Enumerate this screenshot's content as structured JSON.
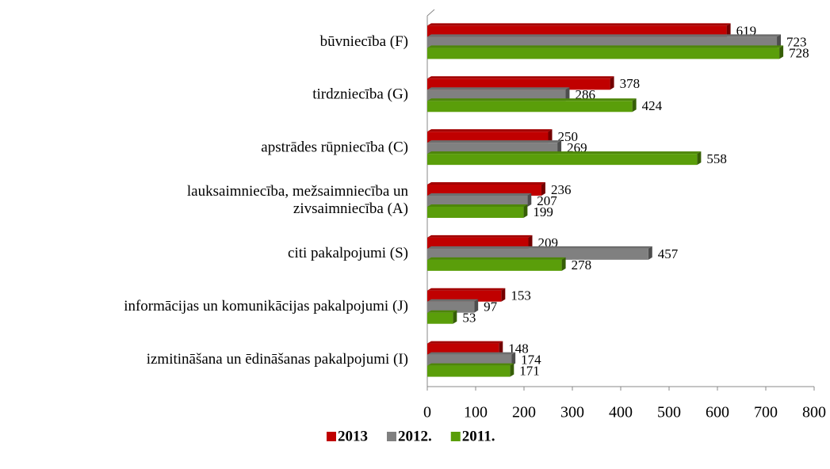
{
  "chart_data": {
    "type": "bar",
    "orientation": "horizontal",
    "categories": [
      "būvniecība (F)",
      "tirdzniecība (G)",
      "apstrādes rūpniecība (C)",
      "lauksaimniecība,  mežsaimniecība un\nzivsaimniecība (A)",
      "citi pakalpojumi (S)",
      "informācijas un komunikācijas pakalpojumi (J)",
      "izmitināšana un ēdināšanas pakalpojumi (I)"
    ],
    "series": [
      {
        "name": "2013",
        "color": "#c00000",
        "values": [
          619,
          378,
          250,
          236,
          209,
          153,
          148
        ]
      },
      {
        "name": "2012.",
        "color": "#808080",
        "values": [
          723,
          286,
          269,
          207,
          457,
          97,
          174
        ]
      },
      {
        "name": "2011.",
        "color": "#5a9e0a",
        "values": [
          728,
          424,
          558,
          199,
          278,
          53,
          171
        ]
      }
    ],
    "xlim": [
      0,
      800
    ],
    "xticks": [
      0,
      100,
      200,
      300,
      400,
      500,
      600,
      700,
      800
    ],
    "legend": "bottom",
    "grid": false
  }
}
